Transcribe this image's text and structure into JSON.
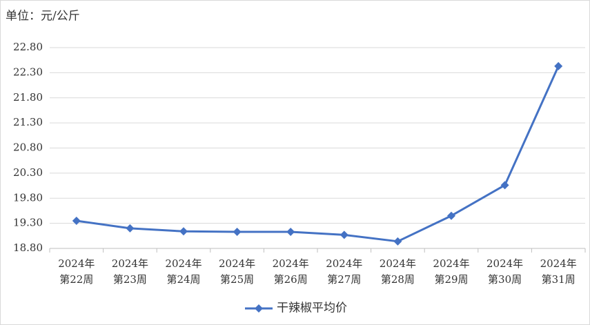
{
  "chart_data": {
    "type": "line",
    "title": "单位：元/公斤",
    "categories": [
      "2024年\n第22周",
      "2024年\n第23周",
      "2024年\n第24周",
      "2024年\n第25周",
      "2024年\n第26周",
      "2024年\n第27周",
      "2024年\n第28周",
      "2024年\n第29周",
      "2024年\n第30周",
      "2024年\n第31周"
    ],
    "series": [
      {
        "name": "干辣椒平均价",
        "color": "#4472c4",
        "values": [
          19.35,
          19.2,
          19.14,
          19.13,
          19.13,
          19.07,
          18.94,
          19.45,
          20.06,
          22.43
        ]
      }
    ],
    "ylim": [
      18.8,
      22.8
    ],
    "yticks": [
      {
        "value": 18.8,
        "label": "18.80"
      },
      {
        "value": 19.3,
        "label": "19.30"
      },
      {
        "value": 19.8,
        "label": "19.80"
      },
      {
        "value": 20.3,
        "label": "20.30"
      },
      {
        "value": 20.8,
        "label": "20.80"
      },
      {
        "value": 21.3,
        "label": "21.30"
      },
      {
        "value": 21.8,
        "label": "21.80"
      },
      {
        "value": 22.3,
        "label": "22.30"
      },
      {
        "value": 22.8,
        "label": "22.80"
      }
    ],
    "grid": true,
    "legend": "bottom"
  }
}
